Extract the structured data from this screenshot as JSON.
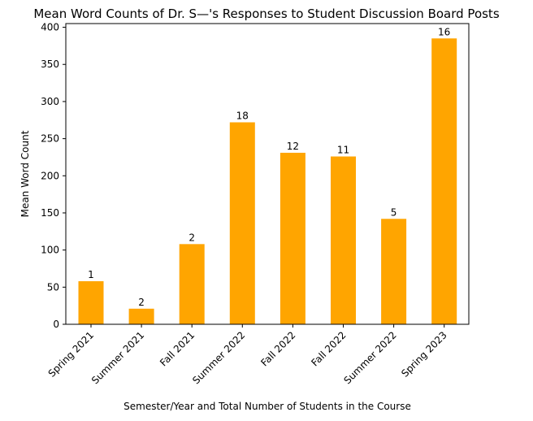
{
  "chart_data": {
    "type": "bar",
    "title": "Mean Word Counts of Dr. S—'s Responses to Student Discussion Board Posts",
    "xlabel": "Semester/Year and Total Number of Students in the Course",
    "ylabel": "Mean Word Count",
    "categories": [
      "Spring 2021",
      "Summer 2021",
      "Fall 2021",
      "Summer 2022",
      "Fall 2022",
      "Fall 2022",
      "Summer 2022",
      "Spring 2023"
    ],
    "values": [
      58,
      21,
      108,
      272,
      231,
      226,
      142,
      385
    ],
    "bar_labels": [
      "1",
      "2",
      "2",
      "18",
      "12",
      "11",
      "5",
      "16"
    ],
    "ylim": [
      0,
      405
    ],
    "yticks": [
      0,
      50,
      100,
      150,
      200,
      250,
      300,
      350,
      400
    ],
    "bar_color": "#ffa500",
    "grid": false,
    "legend": "none"
  }
}
